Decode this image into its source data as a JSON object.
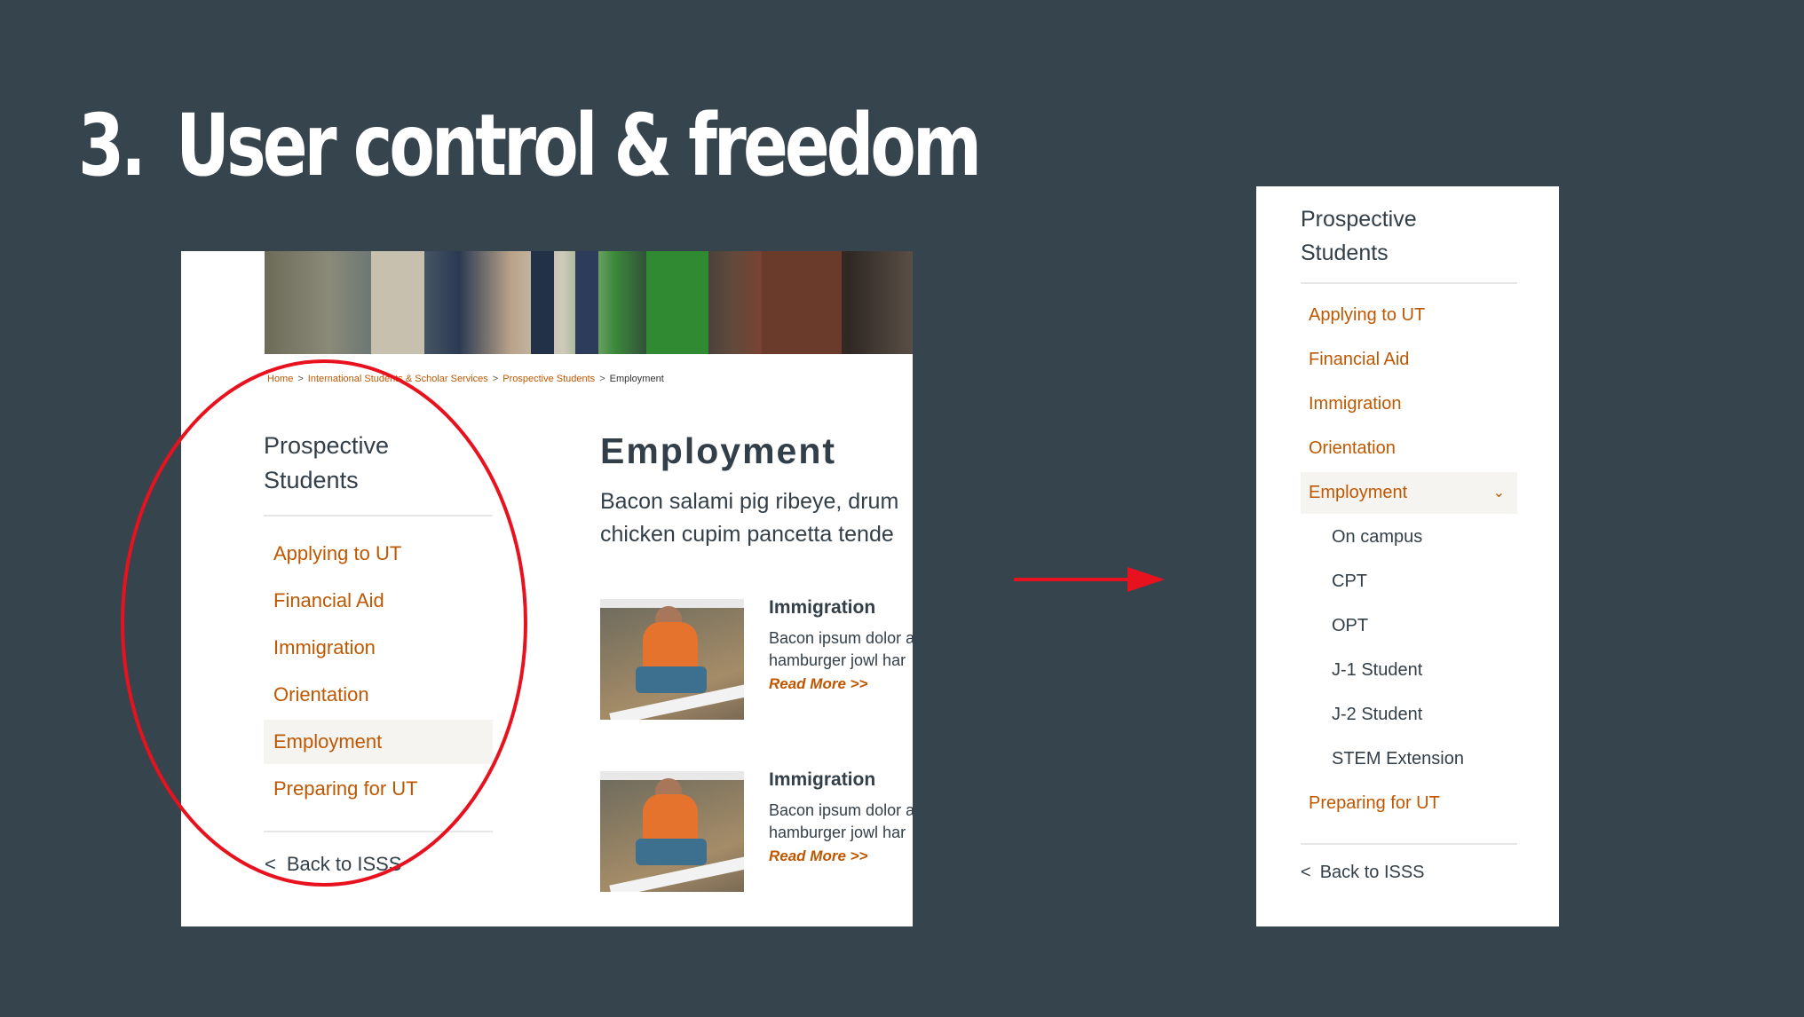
{
  "slide": {
    "number": "3.",
    "title": "User control & freedom"
  },
  "left_panel": {
    "breadcrumb": [
      "Home",
      "International Students & Scholar Services",
      "Prospective Students",
      "Employment"
    ],
    "sidebar_heading_line1": "Prospective",
    "sidebar_heading_line2": "Students",
    "nav_items": [
      {
        "label": "Applying to UT",
        "active": false
      },
      {
        "label": "Financial Aid",
        "active": false
      },
      {
        "label": "Immigration",
        "active": false
      },
      {
        "label": "Orientation",
        "active": false
      },
      {
        "label": "Employment",
        "active": true
      },
      {
        "label": "Preparing for UT",
        "active": false
      }
    ],
    "back_label": "Back to ISSS",
    "content_title": "Employment",
    "content_intro_line1": "Bacon salami pig ribeye, drum",
    "content_intro_line2": "chicken cupim pancetta tende",
    "cards": [
      {
        "title": "Immigration",
        "text_line1": "Bacon ipsum dolor a",
        "text_line2": "hamburger jowl har",
        "more": "Read More >>"
      },
      {
        "title": "Immigration",
        "text_line1": "Bacon ipsum dolor a",
        "text_line2": "hamburger jowl har",
        "more": "Read More >>"
      }
    ]
  },
  "right_panel": {
    "sidebar_heading_line1": "Prospective",
    "sidebar_heading_line2": "Students",
    "nav_items": [
      {
        "label": "Applying to UT",
        "type": "item"
      },
      {
        "label": "Financial Aid",
        "type": "item"
      },
      {
        "label": "Immigration",
        "type": "item"
      },
      {
        "label": "Orientation",
        "type": "item"
      },
      {
        "label": "Employment",
        "type": "active"
      },
      {
        "label": "On campus",
        "type": "sub"
      },
      {
        "label": "CPT",
        "type": "sub"
      },
      {
        "label": "OPT",
        "type": "sub"
      },
      {
        "label": "J-1 Student",
        "type": "sub"
      },
      {
        "label": "J-2 Student",
        "type": "sub"
      },
      {
        "label": "STEM Extension",
        "type": "sub"
      },
      {
        "label": "Preparing for UT",
        "type": "item"
      }
    ],
    "back_label": "Back to ISSS"
  },
  "colors": {
    "background": "#36444e",
    "accent": "#bf5700",
    "highlight": "#e8121f",
    "text": "#333f48"
  },
  "icons": {
    "back": "chevron-left-icon",
    "expand": "chevron-down-icon",
    "arrow": "arrow-right-icon"
  }
}
